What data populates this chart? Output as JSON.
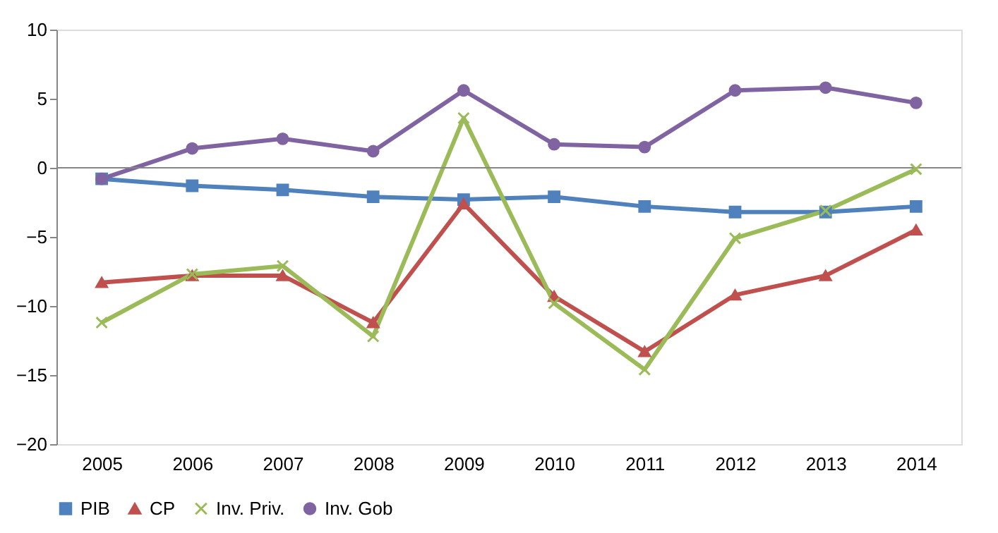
{
  "chart_data": {
    "type": "line",
    "categories": [
      "2005",
      "2006",
      "2007",
      "2008",
      "2009",
      "2010",
      "2011",
      "2012",
      "2013",
      "2014"
    ],
    "ylim": [
      -20,
      10
    ],
    "yticks": [
      -20,
      -15,
      -10,
      -5,
      0,
      5,
      10
    ],
    "grid": false,
    "legend": "bottom",
    "line_style": "solid",
    "ref_lines": [
      {
        "axis": "y",
        "value": 0,
        "color": "#868686"
      }
    ],
    "series": [
      {
        "name": "PIB",
        "color": "#4f81bd",
        "marker": "square",
        "values": [
          -0.8,
          -1.3,
          -1.6,
          -2.1,
          -2.3,
          -2.1,
          -2.8,
          -3.2,
          -3.2,
          -2.8
        ]
      },
      {
        "name": "CP",
        "color": "#c0504d",
        "marker": "triangle",
        "values": [
          -8.3,
          -7.8,
          -7.8,
          -11.2,
          -2.6,
          -9.3,
          -13.3,
          -9.2,
          -7.8,
          -4.5
        ]
      },
      {
        "name": "Inv. Priv.",
        "color": "#9bbb59",
        "marker": "cross",
        "values": [
          -11.2,
          -7.7,
          -7.1,
          -12.2,
          3.6,
          -9.8,
          -14.6,
          -5.1,
          -3.1,
          -0.1
        ]
      },
      {
        "name": "Inv. Gob",
        "color": "#8064a2",
        "marker": "circle",
        "values": [
          -0.8,
          1.4,
          2.1,
          1.2,
          5.6,
          1.7,
          1.5,
          5.6,
          5.8,
          4.7
        ]
      }
    ]
  }
}
